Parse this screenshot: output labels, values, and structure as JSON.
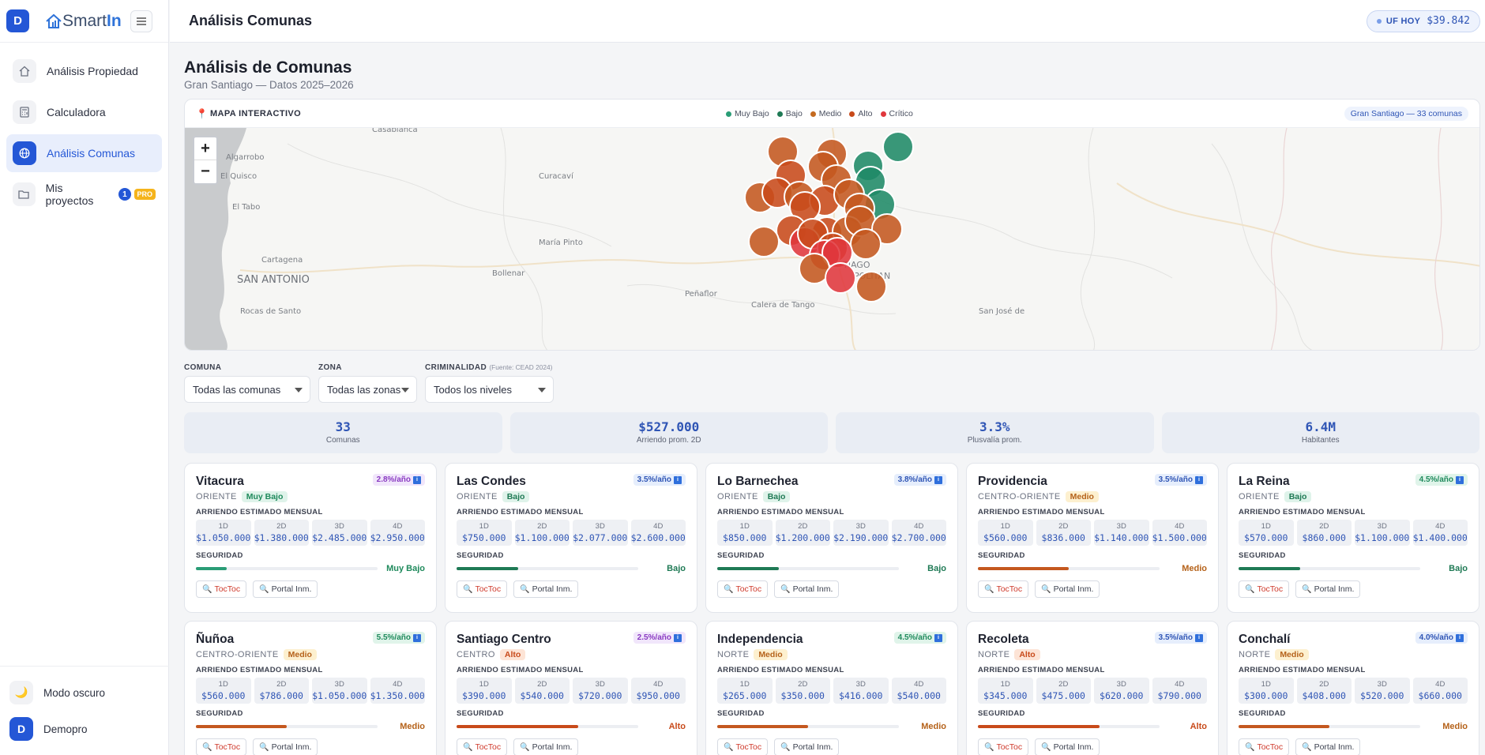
{
  "app": {
    "badge": "D",
    "logo_a": "Smart",
    "logo_b": "In"
  },
  "sidebar": {
    "items": [
      {
        "label": "Análisis Propiedad",
        "icon": "home-icon"
      },
      {
        "label": "Calculadora",
        "icon": "calculator-icon"
      },
      {
        "label": "Análisis Comunas",
        "icon": "globe-icon",
        "active": true
      },
      {
        "label": "Mis proyectos",
        "icon": "folder-icon",
        "count": "1",
        "tag": "PRO"
      }
    ],
    "dark_mode": "Modo oscuro",
    "user_initial": "D",
    "user_name": "Demopro"
  },
  "topbar": {
    "title": "Análisis Comunas",
    "uf_label": "UF HOY",
    "uf_value": "$39.842"
  },
  "page": {
    "title": "Análisis de Comunas",
    "subtitle": "Gran Santiago — Datos 2025–2026"
  },
  "map": {
    "title": "MAPA INTERACTIVO",
    "legend": [
      {
        "label": "Muy Bajo",
        "color": "#2a9d76"
      },
      {
        "label": "Bajo",
        "color": "#1f7a55"
      },
      {
        "label": "Medio",
        "color": "#c46a1f"
      },
      {
        "label": "Alto",
        "color": "#c84a1a"
      },
      {
        "label": "Crítico",
        "color": "#e0373c"
      }
    ],
    "chip": "Gran Santiago — 33 comunas",
    "zoom_in": "+",
    "zoom_out": "−",
    "places": [
      "Casablanca",
      "Algarrobo",
      "El Quisco",
      "El Tabo",
      "Curacaví",
      "Cartagena",
      "SAN ANTONIO",
      "María Pinto",
      "Bollenar",
      "Peñaflor",
      "Rocas de Santo",
      "Calera de Tango",
      "San José de",
      "TIAGO",
      "POLITAN"
    ]
  },
  "filters": {
    "comuna": {
      "label": "COMUNA",
      "value": "Todas las comunas"
    },
    "zona": {
      "label": "ZONA",
      "value": "Todas las zonas"
    },
    "criminalidad": {
      "label": "CRIMINALIDAD",
      "note": "(Fuente: CEAD 2024)",
      "value": "Todos los niveles"
    }
  },
  "stats": [
    {
      "value": "33",
      "label": "Comunas"
    },
    {
      "value": "$527.000",
      "label": "Arriendo prom. 2D"
    },
    {
      "value": "3.3%",
      "label": "Plusvalía prom."
    },
    {
      "value": "6.4M",
      "label": "Habitantes"
    }
  ],
  "labels": {
    "rent": "ARRIENDO ESTIMADO MENSUAL",
    "security": "SEGURIDAD",
    "toctoc": "TocToc",
    "portal": "Portal Inm."
  },
  "comunas": [
    {
      "name": "Vitacura",
      "zone": "ORIENTE",
      "risk": "Muy Bajo",
      "growth": "2.8%/año",
      "prices": [
        "$1.050.000",
        "$1.380.000",
        "$2.485.000",
        "$2.950.000"
      ],
      "security": 0.17
    },
    {
      "name": "Las Condes",
      "zone": "ORIENTE",
      "risk": "Bajo",
      "growth": "3.5%/año",
      "prices": [
        "$750.000",
        "$1.100.000",
        "$2.077.000",
        "$2.600.000"
      ],
      "security": 0.34
    },
    {
      "name": "Lo Barnechea",
      "zone": "ORIENTE",
      "risk": "Bajo",
      "growth": "3.8%/año",
      "prices": [
        "$850.000",
        "$1.200.000",
        "$2.190.000",
        "$2.700.000"
      ],
      "security": 0.34
    },
    {
      "name": "Providencia",
      "zone": "CENTRO-ORIENTE",
      "risk": "Medio",
      "growth": "3.5%/año",
      "prices": [
        "$560.000",
        "$836.000",
        "$1.140.000",
        "$1.500.000"
      ],
      "security": 0.5
    },
    {
      "name": "La Reina",
      "zone": "ORIENTE",
      "risk": "Bajo",
      "growth": "4.5%/año",
      "prices": [
        "$570.000",
        "$860.000",
        "$1.100.000",
        "$1.400.000"
      ],
      "security": 0.34
    },
    {
      "name": "Ñuñoa",
      "zone": "CENTRO-ORIENTE",
      "risk": "Medio",
      "growth": "5.5%/año",
      "prices": [
        "$560.000",
        "$786.000",
        "$1.050.000",
        "$1.350.000"
      ],
      "security": 0.5
    },
    {
      "name": "Santiago Centro",
      "zone": "CENTRO",
      "risk": "Alto",
      "growth": "2.5%/año",
      "prices": [
        "$390.000",
        "$540.000",
        "$720.000",
        "$950.000"
      ],
      "security": 0.67
    },
    {
      "name": "Independencia",
      "zone": "NORTE",
      "risk": "Medio",
      "growth": "4.5%/año",
      "prices": [
        "$265.000",
        "$350.000",
        "$416.000",
        "$540.000"
      ],
      "security": 0.5
    },
    {
      "name": "Recoleta",
      "zone": "NORTE",
      "risk": "Alto",
      "growth": "3.5%/año",
      "prices": [
        "$345.000",
        "$475.000",
        "$620.000",
        "$790.000"
      ],
      "security": 0.67
    },
    {
      "name": "Conchalí",
      "zone": "NORTE",
      "risk": "Medio",
      "growth": "4.0%/año",
      "prices": [
        "$300.000",
        "$408.000",
        "$520.000",
        "$660.000"
      ],
      "security": 0.5
    }
  ],
  "risk_styles": {
    "Muy Bajo": {
      "bg": "#dff3ea",
      "fg": "#1f8a5c",
      "bar": "#2a9d76"
    },
    "Bajo": {
      "bg": "#dff3ea",
      "fg": "#1f7a55",
      "bar": "#1f7a55"
    },
    "Medio": {
      "bg": "#fdf0cf",
      "fg": "#b5621a",
      "bar": "#c4581f"
    },
    "Alto": {
      "bg": "#fde4d6",
      "fg": "#c84a1a",
      "bar": "#c84a1a"
    }
  }
}
